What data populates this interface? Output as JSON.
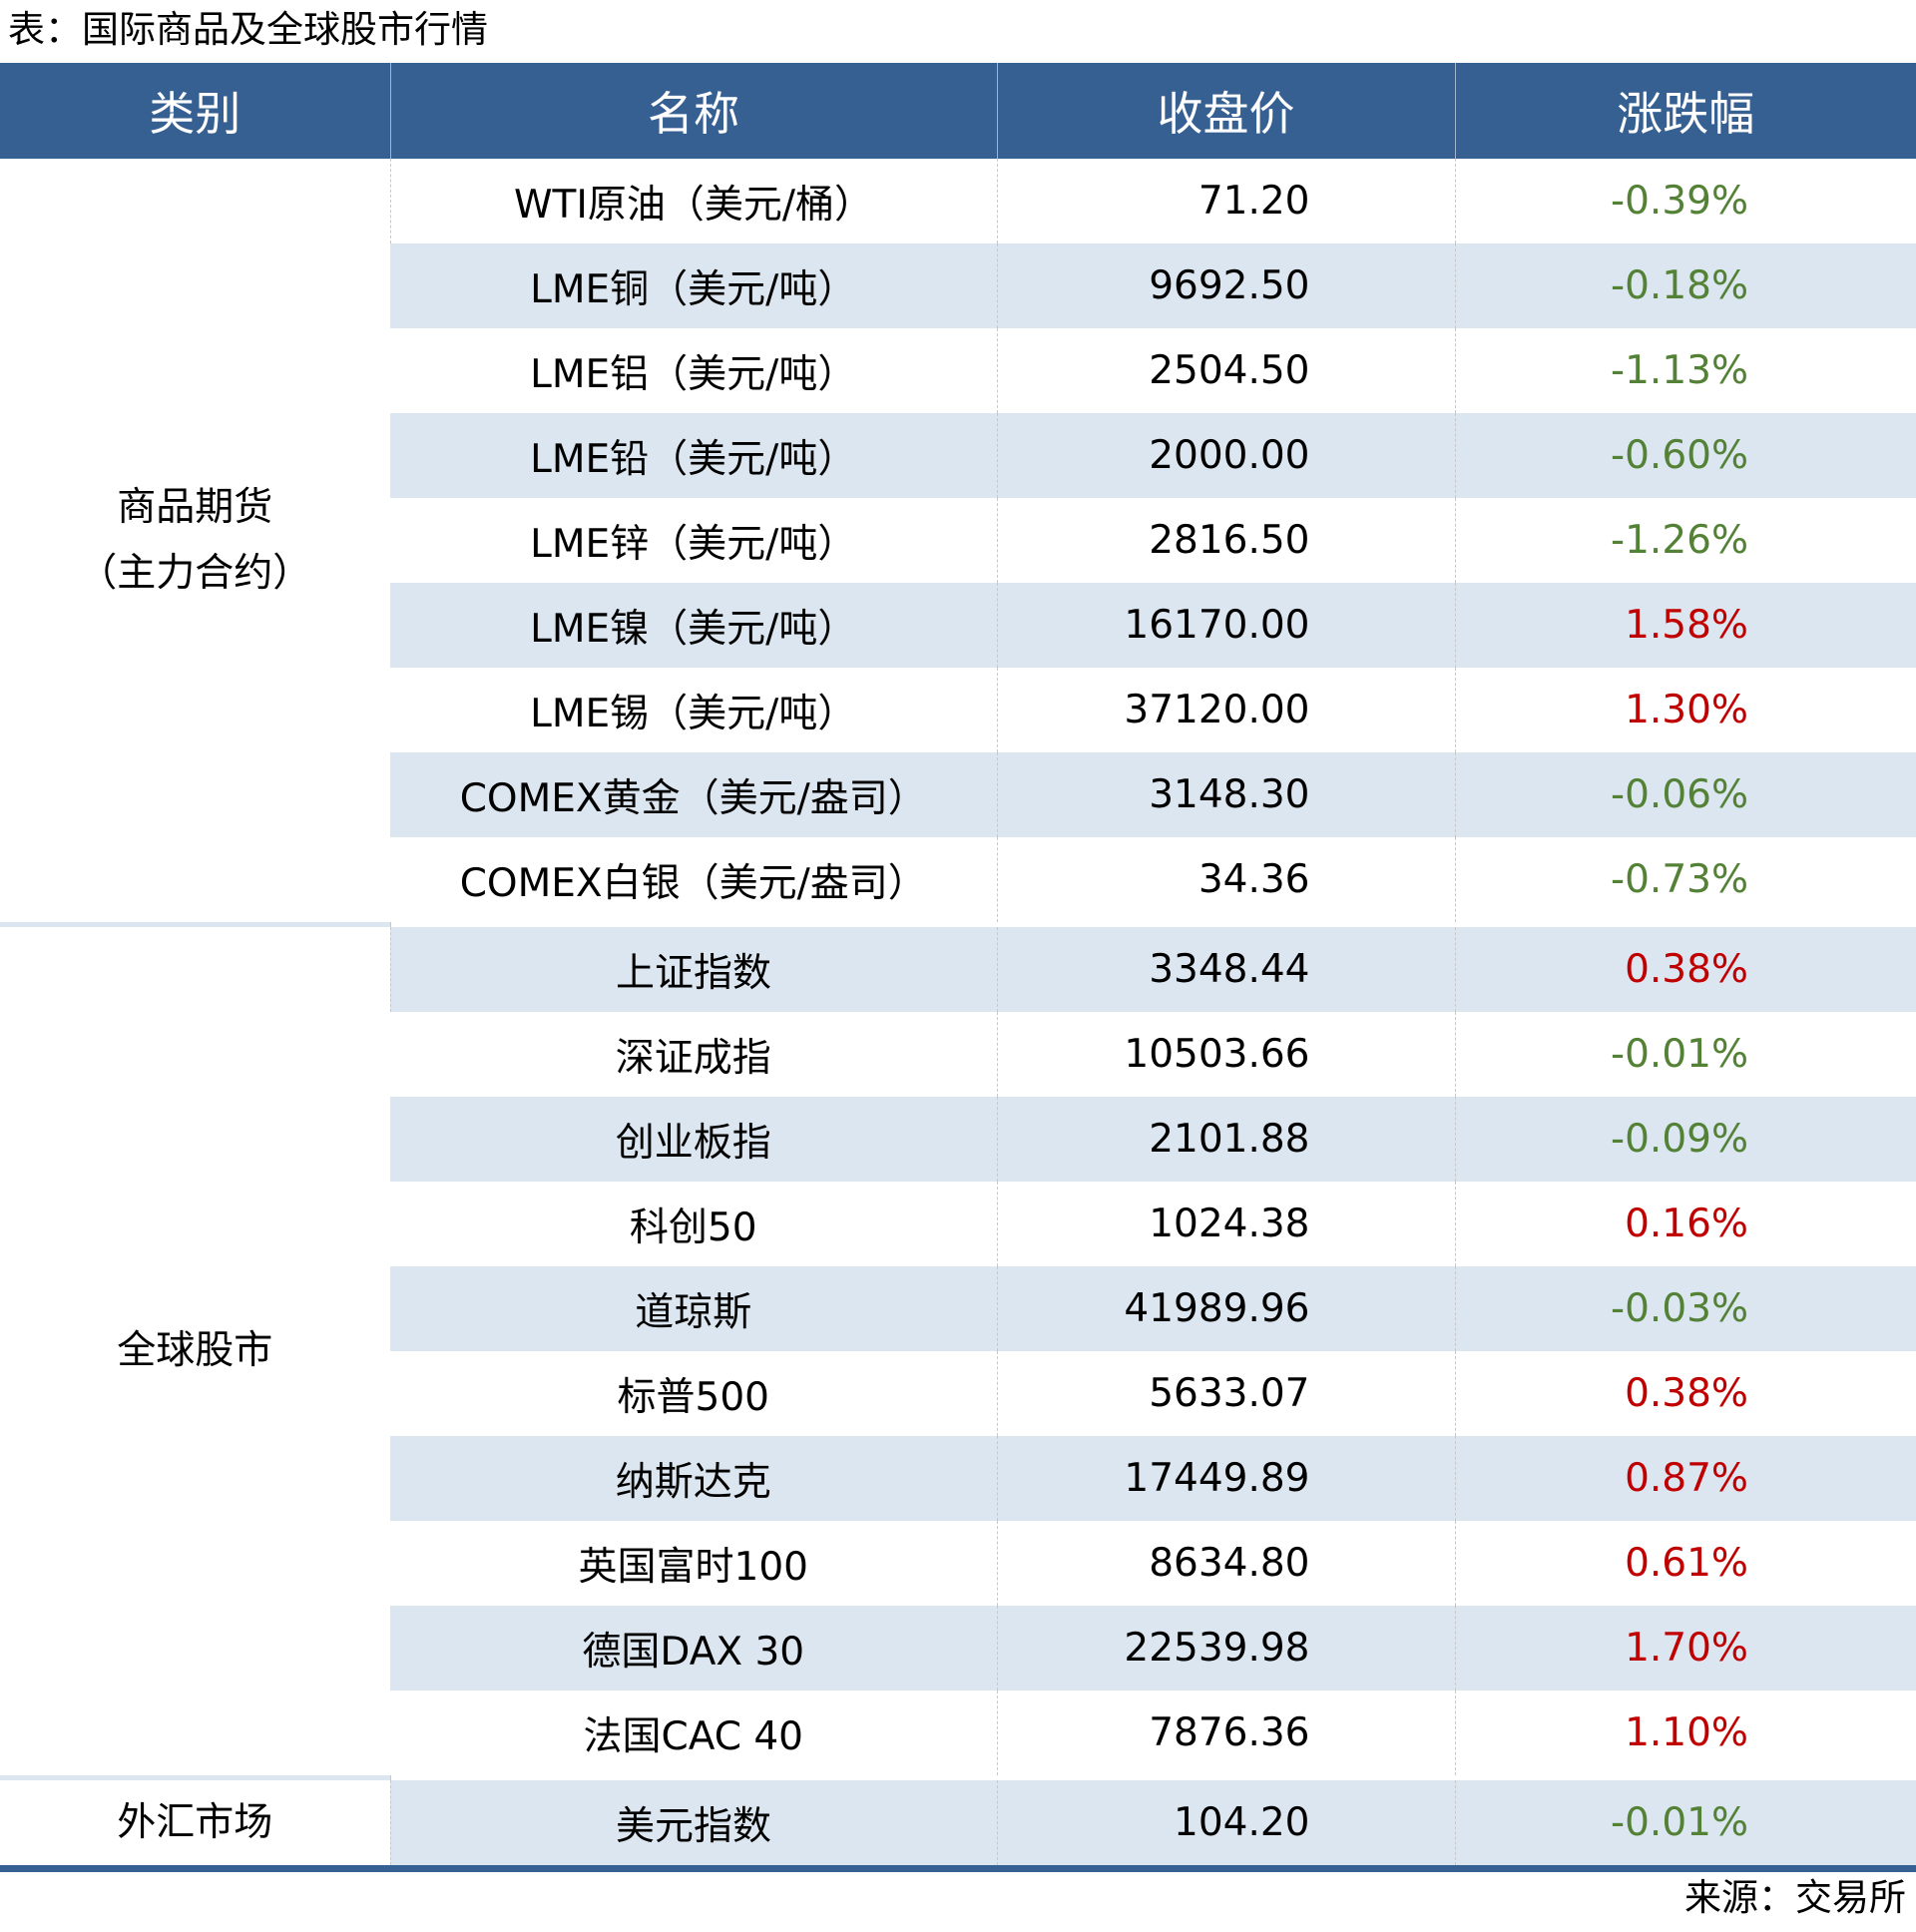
{
  "title": "表：国际商品及全球股市行情",
  "source": "来源：交易所",
  "colors": {
    "header": "#366092",
    "stripe": "#dce6f1",
    "up": "#c00000",
    "down": "#538135"
  },
  "headers": [
    "类别",
    "名称",
    "收盘价",
    "涨跌幅"
  ],
  "groups": [
    {
      "category": [
        "商品期货",
        "（主力合约）"
      ],
      "rows": [
        {
          "name": "WTI原油（美元/桶）",
          "price": "71.20",
          "change": "-0.39%"
        },
        {
          "name": "LME铜（美元/吨）",
          "price": "9692.50",
          "change": "-0.18%"
        },
        {
          "name": "LME铝（美元/吨）",
          "price": "2504.50",
          "change": "-1.13%"
        },
        {
          "name": "LME铅（美元/吨）",
          "price": "2000.00",
          "change": "-0.60%"
        },
        {
          "name": "LME锌（美元/吨）",
          "price": "2816.50",
          "change": "-1.26%"
        },
        {
          "name": "LME镍（美元/吨）",
          "price": "16170.00",
          "change": "1.58%"
        },
        {
          "name": "LME锡（美元/吨）",
          "price": "37120.00",
          "change": "1.30%"
        },
        {
          "name": "COMEX黄金（美元/盎司）",
          "price": "3148.30",
          "change": "-0.06%"
        },
        {
          "name": "COMEX白银（美元/盎司）",
          "price": "34.36",
          "change": "-0.73%"
        }
      ]
    },
    {
      "category": [
        "全球股市"
      ],
      "rows": [
        {
          "name": "上证指数",
          "price": "3348.44",
          "change": "0.38%"
        },
        {
          "name": "深证成指",
          "price": "10503.66",
          "change": "-0.01%"
        },
        {
          "name": "创业板指",
          "price": "2101.88",
          "change": "-0.09%"
        },
        {
          "name": "科创50",
          "price": "1024.38",
          "change": "0.16%"
        },
        {
          "name": "道琼斯",
          "price": "41989.96",
          "change": "-0.03%"
        },
        {
          "name": "标普500",
          "price": "5633.07",
          "change": "0.38%"
        },
        {
          "name": "纳斯达克",
          "price": "17449.89",
          "change": "0.87%"
        },
        {
          "name": "英国富时100",
          "price": "8634.80",
          "change": "0.61%"
        },
        {
          "name": "德国DAX 30",
          "price": "22539.98",
          "change": "1.70%"
        },
        {
          "name": "法国CAC 40",
          "price": "7876.36",
          "change": "1.10%"
        }
      ]
    },
    {
      "category": [
        "外汇市场"
      ],
      "rows": [
        {
          "name": "美元指数",
          "price": "104.20",
          "change": "-0.01%"
        }
      ]
    }
  ]
}
